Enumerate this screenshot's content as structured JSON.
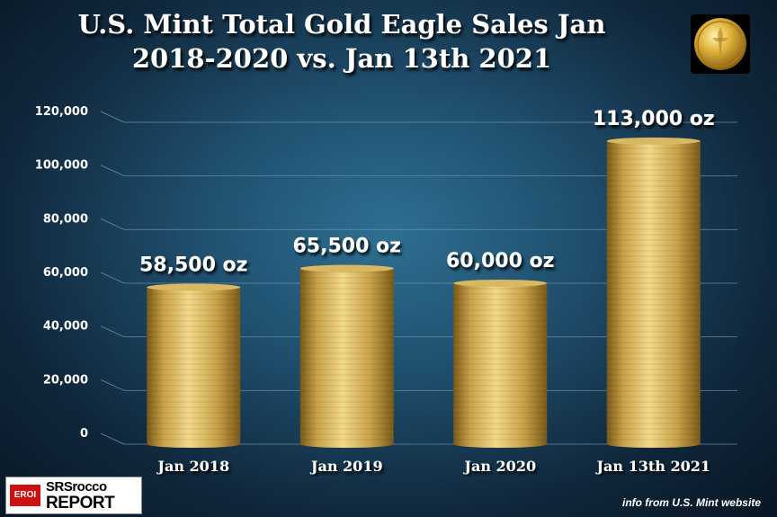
{
  "title": {
    "line1": "U.S. Mint Total Gold Eagle Sales Jan",
    "line2": "2018-2020 vs. Jan 13th 2021"
  },
  "logo": {
    "badge": "EROI",
    "line1": "SRSrocco",
    "line2": "REPORT"
  },
  "source": "info from U.S. Mint website",
  "colors": {
    "gold_light": "#f2d98a",
    "gold_mid": "#c9a24a",
    "gold_dark": "#7a5a18",
    "axis_text": "#ffffff",
    "grid": "#6d8fa6"
  },
  "icons": {
    "coin": "gold-eagle-coin-icon"
  },
  "chart_data": {
    "type": "bar",
    "categories": [
      "Jan 2018",
      "Jan 2019",
      "Jan 2020",
      "Jan 13th 2021"
    ],
    "values": [
      58500,
      65500,
      60000,
      113000
    ],
    "data_labels": [
      "58,500 oz",
      "65,500 oz",
      "60,000 oz",
      "113,000 oz"
    ],
    "yticks": [
      0,
      20000,
      40000,
      60000,
      80000,
      100000,
      120000
    ],
    "ytick_labels": [
      "0",
      "20,000",
      "40,000",
      "60,000",
      "80,000",
      "100,000",
      "120,000"
    ],
    "ylim": [
      0,
      120000
    ],
    "grid": true,
    "legend": "none"
  }
}
